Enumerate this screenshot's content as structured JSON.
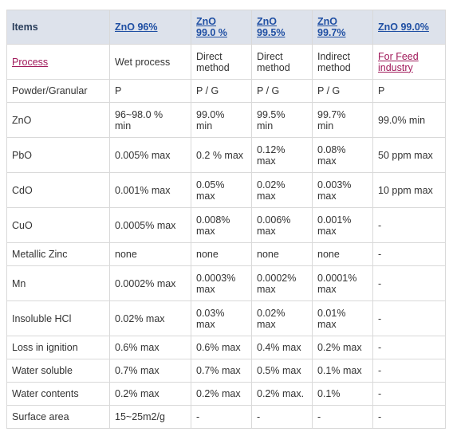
{
  "table": {
    "headers": [
      {
        "label": "Items",
        "link": false
      },
      {
        "label": "ZnO 96%",
        "link": true
      },
      {
        "label": "ZnO\n99.0 %",
        "link": true
      },
      {
        "label": "ZnO\n99.5%",
        "link": true
      },
      {
        "label": "ZnO\n99.7%",
        "link": true
      },
      {
        "label": "ZnO 99.0%",
        "link": true
      }
    ],
    "rows": [
      {
        "tall": true,
        "cells": [
          "Process",
          "Wet process",
          "Direct\nmethod",
          "Direct\nmethod",
          "Indirect\nmethod",
          "For Feed\n industry"
        ],
        "links": [
          0,
          5
        ]
      },
      {
        "tall": false,
        "cells": [
          "Powder/Granular",
          "P",
          "P / G",
          "P / G",
          "P / G",
          "P"
        ],
        "links": []
      },
      {
        "tall": true,
        "cells": [
          "ZnO",
          "96~98.0 %\nmin",
          "99.0%\nmin",
          "99.5%\nmin",
          "99.7%\nmin",
          "99.0% min"
        ],
        "links": []
      },
      {
        "tall": true,
        "cells": [
          "PbO",
          "0.005% max",
          "0.2 % max",
          "0.12%\nmax",
          "0.08%\nmax",
          "50 ppm max"
        ],
        "links": []
      },
      {
        "tall": true,
        "cells": [
          "CdO",
          "0.001% max",
          "0.05%\nmax",
          "0.02%\nmax",
          "0.003%\nmax",
          "10 ppm max"
        ],
        "links": []
      },
      {
        "tall": true,
        "cells": [
          "CuO",
          "0.0005% max",
          "0.008%\nmax",
          "0.006%\nmax",
          "0.001%\nmax",
          "-"
        ],
        "links": []
      },
      {
        "tall": false,
        "cells": [
          "Metallic Zinc",
          "none",
          "none",
          "none",
          "none",
          "-"
        ],
        "links": []
      },
      {
        "tall": true,
        "cells": [
          "Mn",
          "0.0002% max",
          "0.0003%\nmax",
          "0.0002%\nmax",
          "0.0001%\nmax",
          "-"
        ],
        "links": []
      },
      {
        "tall": true,
        "cells": [
          "Insoluble HCl",
          "0.02% max",
          "0.03%\nmax",
          "0.02%\nmax",
          "0.01%\nmax",
          "-"
        ],
        "links": []
      },
      {
        "tall": false,
        "cells": [
          "Loss in ignition",
          "0.6% max",
          "0.6% max",
          "0.4% max",
          "0.2% max",
          "-"
        ],
        "links": []
      },
      {
        "tall": false,
        "cells": [
          "Water soluble",
          "0.7% max",
          "0.7% max",
          "0.5% max",
          "0.1% max",
          "-"
        ],
        "links": []
      },
      {
        "tall": false,
        "cells": [
          "Water contents",
          "0.2% max",
          "0.2% max",
          "0.2% max.",
          "0.1%",
          "-"
        ],
        "links": []
      },
      {
        "tall": false,
        "cells": [
          "Surface area",
          "15~25m2/g",
          "-",
          "-",
          "-",
          "-"
        ],
        "links": []
      }
    ]
  },
  "colors": {
    "header_bg": "#dde2eb",
    "header_link": "#1f4fa3",
    "row_link": "#a0195a",
    "border": "#d9d9d9",
    "text": "#333333"
  }
}
